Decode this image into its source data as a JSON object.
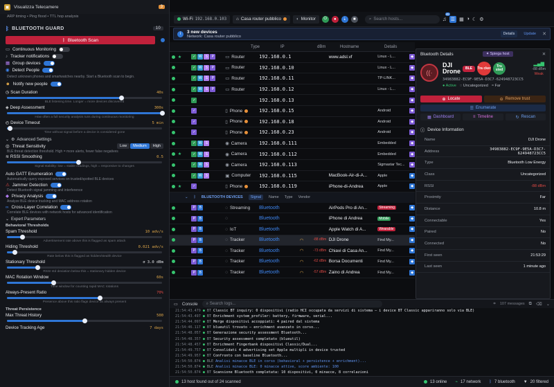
{
  "left_panel": {
    "top_item": {
      "label": "Visualizza Telecamere",
      "count": "3"
    },
    "top_sub": "ARP timing • Ping flood • TTL hop analysis",
    "guard_title": "BLUETOOTH GUARD",
    "guard_count": "10",
    "scan_button": "Bluetooth Scan",
    "toggles": [
      {
        "label": "Continuous Monitoring",
        "on": false
      },
      {
        "label": "Tracker notifications",
        "on": false
      },
      {
        "label": "Group devices",
        "on": true
      },
      {
        "label": "Detect People",
        "on": true
      }
    ],
    "detect_desc": "Detect unknown phones and smartwatches nearby. Start a Bluetooth scan to begin.",
    "notify_label": "Notify new people",
    "scan_duration": {
      "label": "Scan Duration",
      "value": "40s",
      "level": 0.74,
      "hint": "BLE listening time. Longer = more devices discovered"
    },
    "deep_assessment": {
      "label": "Deep Assessment",
      "value": "300s",
      "level": 1.0,
      "hint": "How often a full security analysis runs during continuous monitoring"
    },
    "device_timeout": {
      "label": "Device Timeout",
      "value": "5 min",
      "level": 0.02,
      "hint": "Time without signal before a device is considered gone"
    },
    "advanced_settings": "Advanced Settings",
    "threat_sensitivity": {
      "label": "Threat Sensitivity",
      "options": [
        "Low",
        "Medium",
        "High"
      ],
      "selected": "Medium",
      "desc": "BLE threat detection threshold. High = more alerts, fewer false negatives"
    },
    "rssi_smoothing": {
      "label": "RSSI Smoothing",
      "value": "0.5",
      "level": 0.46,
      "hint": "Signal stability: low = stable readings, high = responsive to changes"
    },
    "auto_gatt": {
      "label": "Auto GATT Enumeration",
      "desc": "Automatically query exposed services on trusted/spotted BLE devices"
    },
    "jammer": {
      "label": "Jammer Detection",
      "desc": "Detect Bluetooth signal jamming and interference"
    },
    "privacy": {
      "label": "Privacy Analysis",
      "desc": "Analyze BLE device tracking and MAC address rotation"
    },
    "cross_layer": {
      "label": "Cross-Layer Correlation",
      "desc": "Correlate BLE devices with network hosts for advanced identification"
    },
    "expert_params": "Expert Parameters",
    "behavioral_thresholds": "Behavioral Thresholds",
    "spam_threshold": {
      "label": "Spam Threshold",
      "value": "10 adv/s",
      "level": 0.1,
      "hint": "Advertisement rate above this is flagged as spam attack"
    },
    "hiding_threshold": {
      "label": "Hiding Threshold",
      "value": "0.021 adv/s",
      "level": 0.05,
      "hint": "Rate below this is flagged as hidden/stealth device"
    },
    "stationary_threshold": {
      "label": "Stationary Threshold",
      "value": "σ 3.0 dBm",
      "level": 0.2,
      "hint": "RSSI std deviation below this = stationary hidden device"
    },
    "mac_rotation": {
      "label": "MAC Rotation Window",
      "value": "60s",
      "level": 0.3,
      "hint": "Time window for counting rapid MAC rotations"
    },
    "always_present": {
      "label": "Always-Present Ratio",
      "value": "70%",
      "level": 0.6,
      "hint": "Presence above this ratio flags device as always present"
    },
    "threat_persistence": "Threat Persistence",
    "max_threat_history": {
      "label": "Max Threat History",
      "value": "500",
      "level": 0.5
    },
    "device_tracking_age": {
      "label": "Device Tracking Age",
      "value": "7 days"
    }
  },
  "topbar": {
    "wifi": "Wi-Fi",
    "ip": "192.168.0.103",
    "network": "Casa router pubblico",
    "monitor": "Monitor",
    "search_placeholder": "Search hosts...",
    "notif_count": "48"
  },
  "banner": {
    "title": "3 new devices",
    "subtitle": "Network: Casa router pubblico",
    "details": "Details",
    "update": "Update"
  },
  "table": {
    "headers": {
      "type": "Type",
      "ip": "IP",
      "dbm": "dBm",
      "hostname": "Hostname",
      "details": "Details"
    },
    "rows": [
      {
        "type": "Router",
        "ip": "192.168.0.1",
        "host": "www.adsl.vf",
        "det": "Linux - L...",
        "star": true
      },
      {
        "type": "Router",
        "ip": "192.168.0.10",
        "host": "",
        "det": "Linux - L...",
        "star": false
      },
      {
        "type": "Router",
        "ip": "192.168.0.11",
        "host": "",
        "det": "TP-LINK...",
        "star": false
      },
      {
        "type": "Router",
        "ip": "192.168.0.12",
        "host": "",
        "det": "Linux - L...",
        "star": false
      },
      {
        "type": "",
        "ip": "192.168.0.13",
        "host": "",
        "det": "",
        "star": false
      },
      {
        "type": "Phone",
        "ip": "192.168.0.15",
        "host": "",
        "det": "Android",
        "star": false
      },
      {
        "type": "Phone",
        "ip": "192.168.0.18",
        "host": "",
        "det": "Android",
        "star": false
      },
      {
        "type": "Phone",
        "ip": "192.168.0.23",
        "host": "",
        "det": "Android",
        "star": false
      },
      {
        "type": "Camera",
        "ip": "192.168.0.111",
        "host": "",
        "det": "Embedded",
        "star": false
      },
      {
        "type": "Camera",
        "ip": "192.168.0.112",
        "host": "",
        "det": "Embedded",
        "star": true
      },
      {
        "type": "Camera",
        "ip": "192.168.0.113",
        "host": "",
        "det": "Sigmastar Tec...",
        "star": false
      },
      {
        "type": "Computer",
        "ip": "192.168.0.115",
        "host": "MacBook-Air-di-A...",
        "det": "Apple",
        "star": false
      },
      {
        "type": "Phone",
        "ip": "192.168.0.119",
        "host": "iPhone-di-Andrea",
        "det": "Apple",
        "star": true
      }
    ],
    "bt_section": {
      "label": "BLUETOOTH DEVICES",
      "signal": "Signal",
      "name": "Name",
      "type": "Type",
      "vendor": "Vendor"
    },
    "bt_rows": [
      {
        "type": "Streaming",
        "ip": "Bluetooth",
        "dbm": "",
        "host": "AirPods Pro di An...",
        "det": "Streaming"
      },
      {
        "type": "",
        "ip": "Bluetooth",
        "dbm": "",
        "host": "iPhone di Andrea",
        "det": "Mobile"
      },
      {
        "type": "IoT",
        "ip": "Bluetooth",
        "dbm": "",
        "host": "Apple Watch di A...",
        "det": "Wearable"
      },
      {
        "type": "Tracker",
        "ip": "Bluetooth",
        "dbm": "-88 dBm",
        "host": "DJI Drone",
        "det": "Find My..."
      },
      {
        "type": "Tracker",
        "ip": "Bluetooth",
        "dbm": "-73 dBm",
        "host": "Chiavi di Casa An...",
        "det": "Find My..."
      },
      {
        "type": "Tracker",
        "ip": "Bluetooth",
        "dbm": "-62 dBm",
        "host": "Borsa Documenti",
        "det": "Find My..."
      },
      {
        "type": "Tracker",
        "ip": "Bluetooth",
        "dbm": "-57 dBm",
        "host": "Zaino di Andrea",
        "det": "Find My..."
      }
    ]
  },
  "details": {
    "title": "Bluetooth Details",
    "spiega": "Spiega host",
    "name_l1": "DJI",
    "name_l2": "Drone",
    "ble_tag": "BLE",
    "tracker_tag": "Tra cker",
    "trusted_tag": "Tru sted",
    "mac": "34983882-EC9F-9E5A-D3C7-624948723CC5",
    "status": "Active",
    "category": "Uncategorized",
    "proximity_short": "Far",
    "signal_value": "-88 dBm",
    "signal_quality": "Weak",
    "locate": "Locate",
    "remove_trust": "Remove trust",
    "enumerate": "Enumerate",
    "dashboard": "Dashboard",
    "timeline": "Timeline",
    "rescan": "Rescan",
    "info_title": "Device Information",
    "info": [
      {
        "k": "Name",
        "v": "DJI Drone"
      },
      {
        "k": "Address",
        "v": "34983882-EC9F-9E5A-D3C7-624948723CC5"
      },
      {
        "k": "Type",
        "v": "Bluetooth Low Energy"
      },
      {
        "k": "Class",
        "v": "Uncategorized"
      },
      {
        "k": "RSSI",
        "v": "-88 dBm"
      },
      {
        "k": "Proximity",
        "v": "Far"
      },
      {
        "k": "Distance",
        "v": "10.8 m"
      },
      {
        "k": "Connectable",
        "v": "Yes"
      },
      {
        "k": "Paired",
        "v": "No"
      },
      {
        "k": "Connected",
        "v": "No"
      },
      {
        "k": "First seen",
        "v": "21:53:29"
      },
      {
        "k": "Last seen",
        "v": "1 minute ago"
      }
    ]
  },
  "console": {
    "title": "Console",
    "search_placeholder": "Search logs...",
    "count": "107 messages",
    "lines": [
      {
        "ts": "21:54:43.479",
        "tag": "BT",
        "msg": "Classic BT inquiry: 0 dispositivi (radio HCI occupata da servizi di sistema — i device BT Classic appariranno solo via BLE)",
        "color": "#e9ebf0"
      },
      {
        "ts": "21:54:43.497",
        "tag": "BT",
        "msg": "Enrichment system_profiler: battery, firmware, serial...",
        "color": "#e9ebf0"
      },
      {
        "ts": "21:54:44.097",
        "tag": "BT",
        "msg": "Merge dispositivi accoppiati: 4 paired dal sistema",
        "color": "#e9ebf0"
      },
      {
        "ts": "21:54:46.117",
        "tag": "BT",
        "msg": "blueutil trovato — enrichment avanzato in corso...",
        "color": "#e9ebf0"
      },
      {
        "ts": "21:54:48.057",
        "tag": "BT",
        "msg": "Generazione security assessment Bluetooth...",
        "color": "#e9ebf0"
      },
      {
        "ts": "21:54:48.357",
        "tag": "BT",
        "msg": "Security assessment completato (blueutil)",
        "color": "#e9ebf0"
      },
      {
        "ts": "21:54:48.457",
        "tag": "BT",
        "msg": "Enrichment Fingerbank dispositivi Classic/Dual...",
        "color": "#e9ebf0"
      },
      {
        "ts": "21:54:49.757",
        "tag": "BT",
        "msg": "Consolidati 4 advertising set Apple multipli in device trusted",
        "color": "#e9ebf0"
      },
      {
        "ts": "21:54:49.957",
        "tag": "BT",
        "msg": "Confronto con baseline Bluetooth...",
        "color": "#e9ebf0"
      },
      {
        "ts": "21:54:50.874",
        "tag": "BLE",
        "msg": "Analisi minacce BLE in corso (behavioral + persistence + enrichment)...",
        "color": "#5f93f0"
      },
      {
        "ts": "21:54:50.874",
        "tag": "BLE",
        "msg": "Analisi minacce BLE: 0 minacce attive, score ambiente: 100",
        "color": "#5f93f0"
      },
      {
        "ts": "21:54:50.874",
        "tag": "BT",
        "msg": "Scansione Bluetooth completata: 10 dispositivi, 0 minacce, 8 correlazioni",
        "color": "#e9ebf0"
      }
    ]
  },
  "footer": {
    "found": "13 host found out of 24 scanned",
    "online": "13 online",
    "network": "17 network",
    "bluetooth": "7 bluetooth",
    "filtered": "20 filtered"
  },
  "colors": {
    "accent": "#2f76d6",
    "danger": "#c0213b",
    "ok": "#36c46f",
    "bt": "#3e86f0"
  }
}
